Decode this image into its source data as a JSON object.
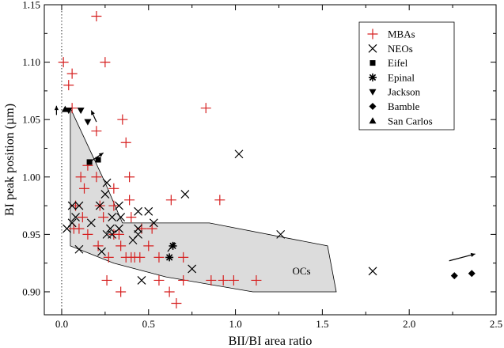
{
  "chart_data": {
    "type": "scatter",
    "title": "",
    "xlabel": "BII/BI area ratio",
    "ylabel": "BI peak position (µm)",
    "xlim": [
      -0.1,
      2.5
    ],
    "ylim": [
      0.88,
      1.15
    ],
    "xticks": [
      0.0,
      0.5,
      1.0,
      1.5,
      2.0,
      2.5
    ],
    "xtick_labels": [
      "0.0",
      "0.5",
      "1.0",
      "1.5",
      "2.0",
      "2.5"
    ],
    "yticks": [
      0.9,
      0.95,
      1.0,
      1.05,
      1.1,
      1.15
    ],
    "ytick_labels": [
      "0.90",
      "0.95",
      "1.00",
      "1.05",
      "1.10",
      "1.15"
    ],
    "grid": false,
    "legend": "top-right",
    "colors": {
      "mba": "#d62020",
      "black": "#000000",
      "region_fill": "#dcdcdc"
    },
    "reference_line_x": 0,
    "region": {
      "label": "OCs",
      "label_position": [
        1.38,
        0.915
      ],
      "polygon": [
        [
          0.05,
          1.06
        ],
        [
          0.25,
          0.995
        ],
        [
          0.35,
          0.96
        ],
        [
          0.85,
          0.96
        ],
        [
          1.53,
          0.94
        ],
        [
          1.58,
          0.9
        ],
        [
          1.1,
          0.9
        ],
        [
          0.6,
          0.913
        ],
        [
          0.3,
          0.925
        ],
        [
          0.05,
          0.94
        ]
      ]
    },
    "series": [
      {
        "name": "MBAs",
        "marker": "plus",
        "color": "#d62020",
        "points": [
          [
            0.2,
            1.14
          ],
          [
            0.01,
            1.1
          ],
          [
            0.25,
            1.1
          ],
          [
            0.06,
            1.09
          ],
          [
            0.04,
            1.08
          ],
          [
            0.06,
            1.06
          ],
          [
            0.83,
            1.06
          ],
          [
            0.35,
            1.05
          ],
          [
            0.2,
            1.04
          ],
          [
            0.37,
            1.03
          ],
          [
            0.15,
            1.01
          ],
          [
            0.2,
            1.0
          ],
          [
            0.39,
            1.0
          ],
          [
            0.11,
            1.0
          ],
          [
            0.13,
            0.99
          ],
          [
            0.3,
            0.99
          ],
          [
            0.08,
            0.975
          ],
          [
            0.22,
            0.975
          ],
          [
            0.3,
            0.975
          ],
          [
            0.39,
            0.98
          ],
          [
            0.63,
            0.98
          ],
          [
            0.91,
            0.98
          ],
          [
            0.12,
            0.965
          ],
          [
            0.24,
            0.965
          ],
          [
            0.4,
            0.965
          ],
          [
            0.52,
            0.955
          ],
          [
            0.07,
            0.955
          ],
          [
            0.1,
            0.955
          ],
          [
            0.15,
            0.95
          ],
          [
            0.3,
            0.95
          ],
          [
            0.33,
            0.95
          ],
          [
            0.46,
            0.955
          ],
          [
            0.21,
            0.94
          ],
          [
            0.34,
            0.94
          ],
          [
            0.5,
            0.94
          ],
          [
            0.27,
            0.93
          ],
          [
            0.37,
            0.93
          ],
          [
            0.4,
            0.93
          ],
          [
            0.42,
            0.93
          ],
          [
            0.45,
            0.93
          ],
          [
            0.56,
            0.93
          ],
          [
            0.7,
            0.93
          ],
          [
            0.26,
            0.91
          ],
          [
            0.56,
            0.91
          ],
          [
            0.7,
            0.91
          ],
          [
            0.86,
            0.91
          ],
          [
            0.93,
            0.91
          ],
          [
            0.99,
            0.91
          ],
          [
            1.12,
            0.91
          ],
          [
            0.34,
            0.9
          ],
          [
            0.62,
            0.9
          ],
          [
            0.66,
            0.89
          ]
        ]
      },
      {
        "name": "NEOs",
        "marker": "x",
        "color": "#000000",
        "points": [
          [
            1.02,
            1.02
          ],
          [
            0.26,
            0.995
          ],
          [
            0.25,
            0.985
          ],
          [
            0.71,
            0.985
          ],
          [
            0.06,
            0.975
          ],
          [
            0.1,
            0.975
          ],
          [
            0.22,
            0.975
          ],
          [
            0.33,
            0.975
          ],
          [
            0.44,
            0.97
          ],
          [
            0.5,
            0.97
          ],
          [
            0.08,
            0.965
          ],
          [
            0.29,
            0.965
          ],
          [
            0.34,
            0.965
          ],
          [
            0.06,
            0.96
          ],
          [
            0.17,
            0.96
          ],
          [
            0.03,
            0.955
          ],
          [
            0.33,
            0.955
          ],
          [
            0.28,
            0.955
          ],
          [
            0.44,
            0.955
          ],
          [
            0.53,
            0.96
          ],
          [
            0.26,
            0.95
          ],
          [
            0.29,
            0.95
          ],
          [
            0.44,
            0.95
          ],
          [
            1.26,
            0.95
          ],
          [
            0.41,
            0.945
          ],
          [
            0.23,
            0.935
          ],
          [
            0.1,
            0.937
          ],
          [
            0.75,
            0.92
          ],
          [
            1.79,
            0.918
          ],
          [
            0.46,
            0.91
          ]
        ]
      },
      {
        "name": "Eifel",
        "marker": "square",
        "color": "#000000",
        "points": [
          [
            0.16,
            1.013
          ],
          [
            0.21,
            1.015
          ]
        ]
      },
      {
        "name": "Epinal",
        "marker": "asterisk",
        "color": "#000000",
        "points": [
          [
            0.64,
            0.94
          ],
          [
            0.62,
            0.93
          ]
        ]
      },
      {
        "name": "Jackson",
        "marker": "triangle-down",
        "color": "#000000",
        "points": [
          [
            0.04,
            1.058
          ],
          [
            0.11,
            1.058
          ],
          [
            0.15,
            1.048
          ]
        ]
      },
      {
        "name": "Bamble",
        "marker": "diamond",
        "color": "#000000",
        "points": [
          [
            2.26,
            0.914
          ],
          [
            2.36,
            0.916
          ]
        ]
      },
      {
        "name": "San Carlos",
        "marker": "triangle-up",
        "color": "#000000",
        "points": [
          [
            0.02,
            1.059
          ]
        ]
      }
    ],
    "arrows": [
      {
        "from": [
          -0.03,
          1.054
        ],
        "to": [
          -0.03,
          1.062
        ]
      },
      {
        "from": [
          0.2,
          1.048
        ],
        "to": [
          0.17,
          1.058
        ]
      },
      {
        "from": [
          0.16,
          1.013
        ],
        "to": [
          0.24,
          1.021
        ]
      },
      {
        "from": [
          0.61,
          0.935
        ],
        "to": [
          0.65,
          0.943
        ]
      },
      {
        "from": [
          2.23,
          0.927
        ],
        "to": [
          2.38,
          0.933
        ]
      }
    ]
  }
}
